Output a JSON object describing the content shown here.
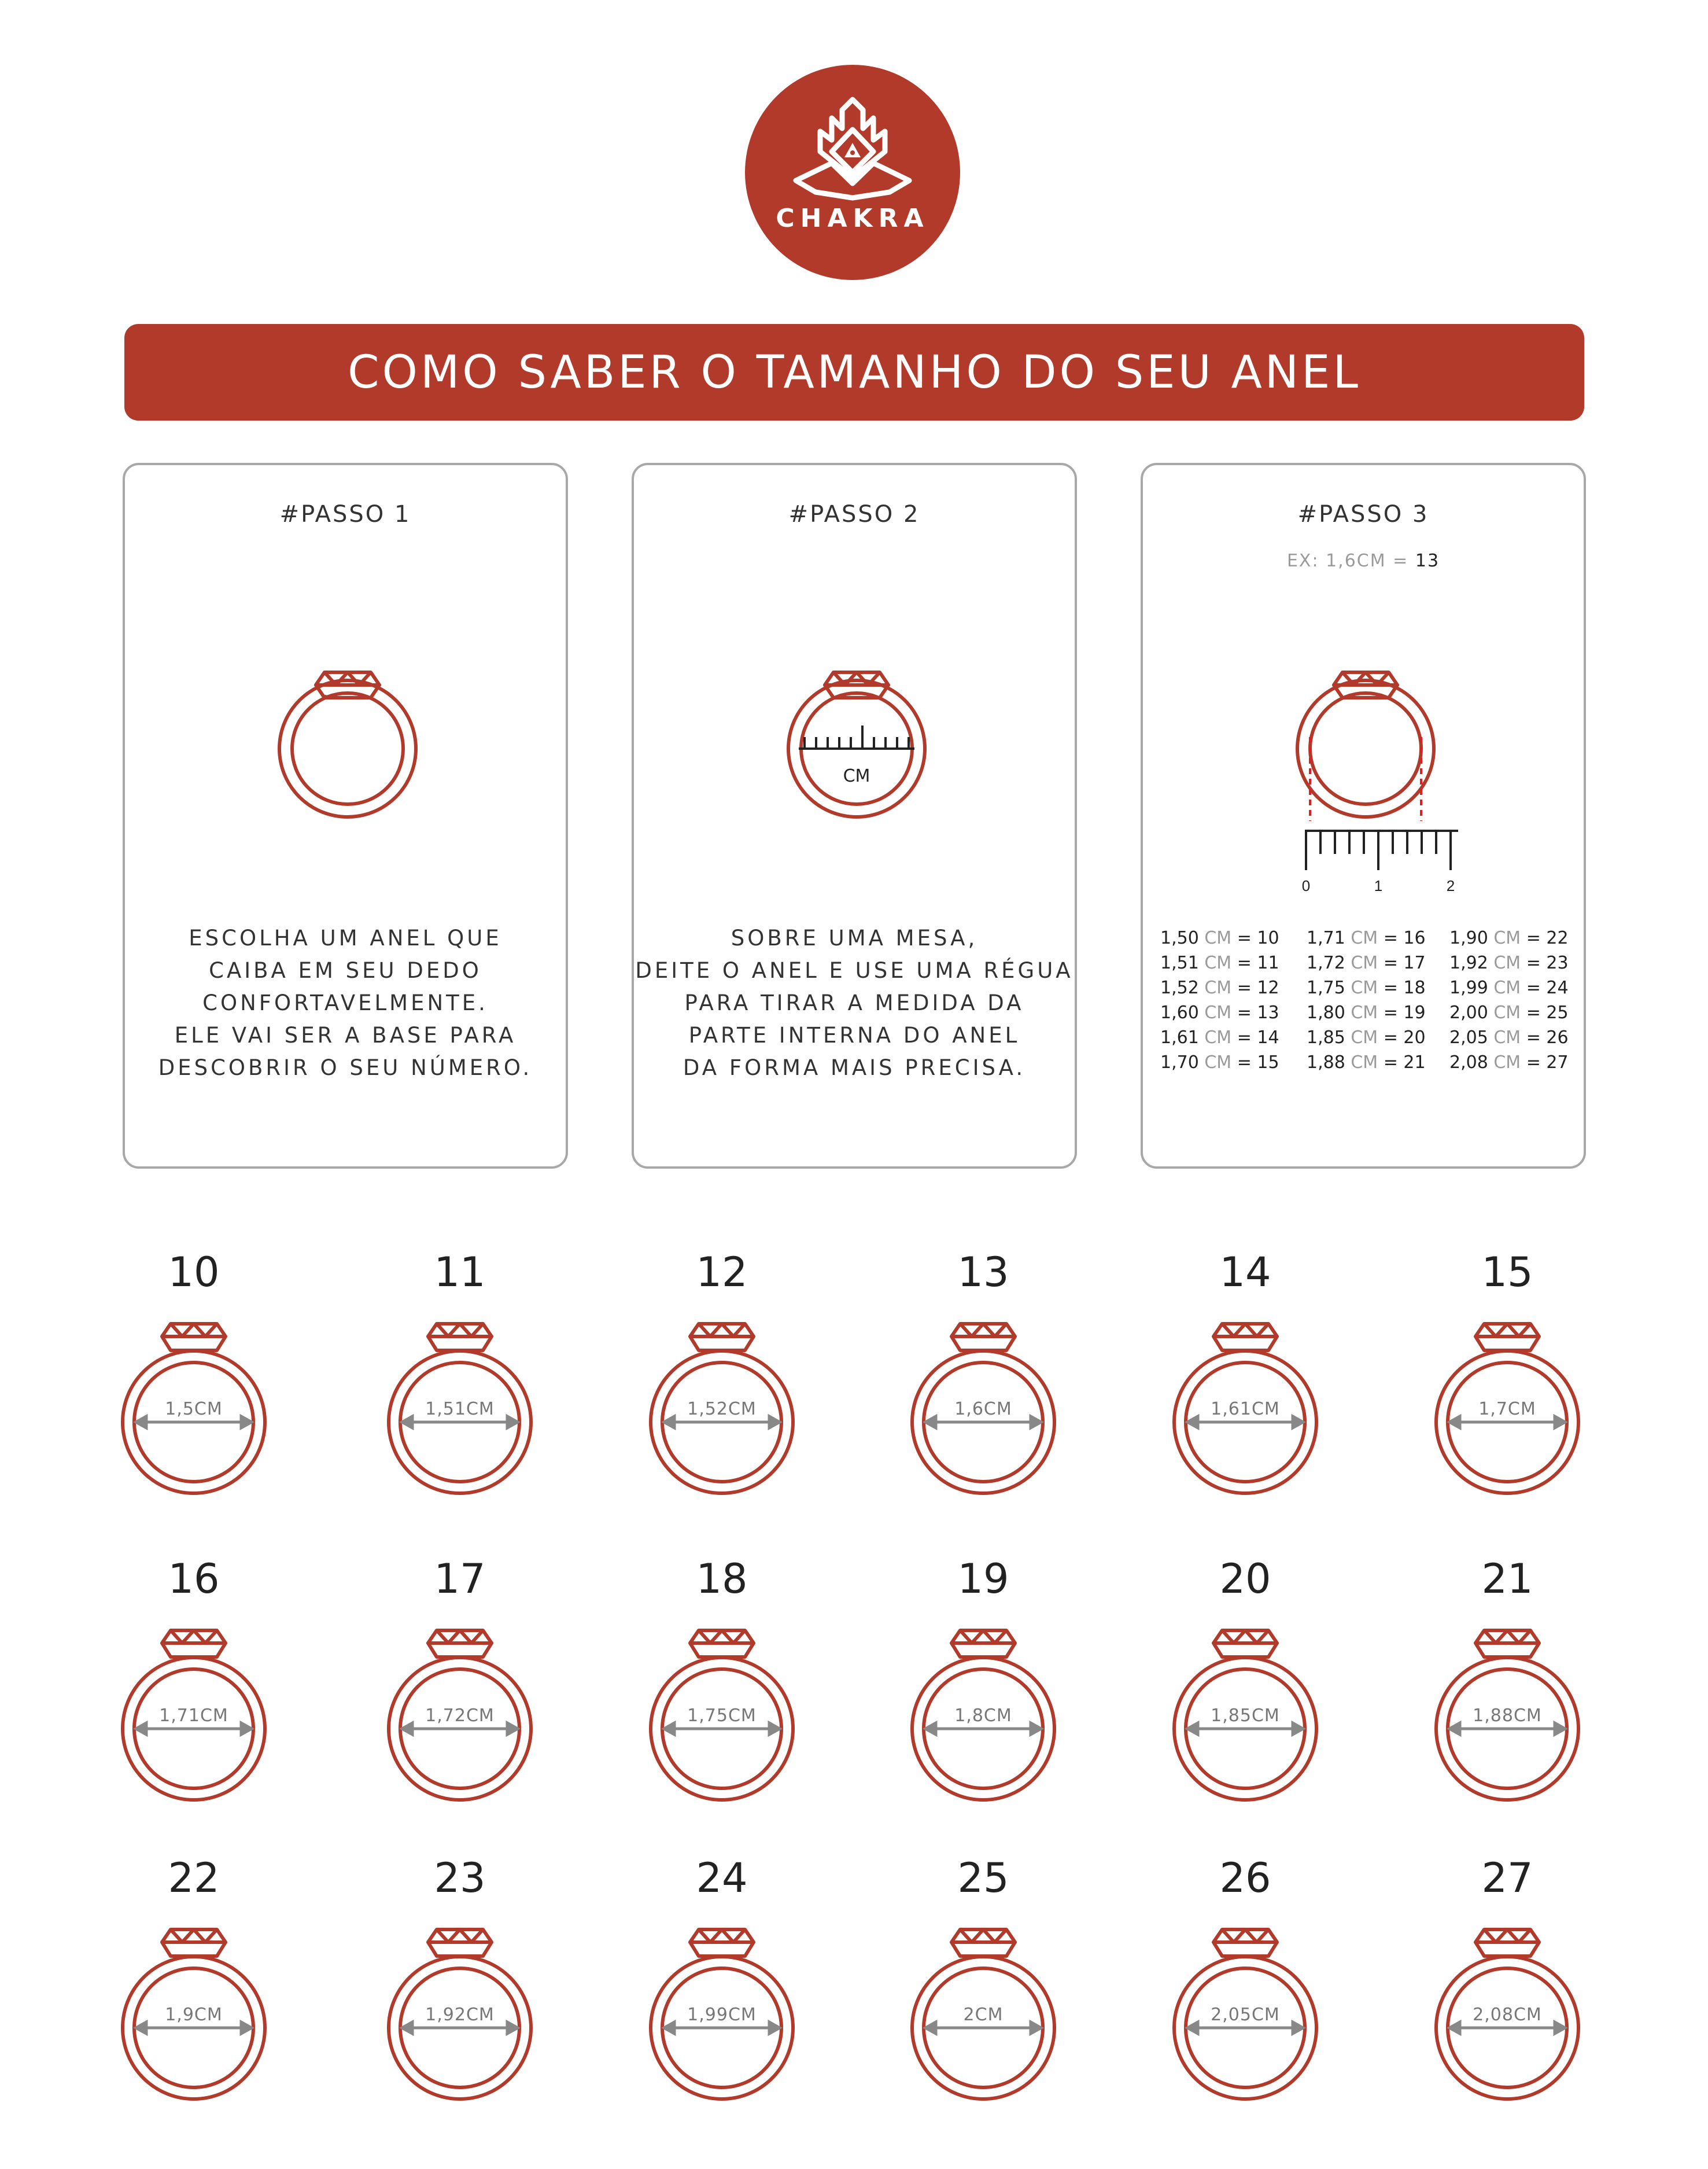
{
  "brand": {
    "name": "CHAKRA",
    "color": "#b13a2a",
    "logo_icon": "chakra-hand-triangle-icon"
  },
  "title": "COMO SABER O TAMANHO DO SEU ANEL",
  "steps": [
    {
      "title": "#PASSO 1",
      "icon": "ring-icon",
      "lines": [
        "ESCOLHA UM ANEL QUE",
        "CAIBA EM SEU DEDO",
        "CONFORTAVELMENTE.",
        "ELE VAI SER A BASE PARA",
        "DESCOBRIR O SEU NÚMERO."
      ]
    },
    {
      "title": "#PASSO 2",
      "icon": "ring-with-ruler-icon",
      "ruler_unit": "CM",
      "lines": [
        "SOBRE UMA MESA,",
        "DEITE O ANEL E USE UMA RÉGUA",
        "PARA TIRAR A MEDIDA DA",
        "PARTE INTERNA DO ANEL",
        "DA FORMA MAIS PRECISA."
      ]
    },
    {
      "title": "#PASSO 3",
      "icon": "ring-measure-icon",
      "example": {
        "prefix": "EX: 1,6CM =",
        "value": "13"
      },
      "ruler_ticks": [
        "0",
        "1",
        "2"
      ],
      "conversion": [
        [
          {
            "cm": "1,50",
            "size": "10"
          },
          {
            "cm": "1,51",
            "size": "11"
          },
          {
            "cm": "1,52",
            "size": "12"
          },
          {
            "cm": "1,60",
            "size": "13"
          },
          {
            "cm": "1,61",
            "size": "14"
          },
          {
            "cm": "1,70",
            "size": "15"
          }
        ],
        [
          {
            "cm": "1,71",
            "size": "16"
          },
          {
            "cm": "1,72",
            "size": "17"
          },
          {
            "cm": "1,75",
            "size": "18"
          },
          {
            "cm": "1,80",
            "size": "19"
          },
          {
            "cm": "1,85",
            "size": "20"
          },
          {
            "cm": "1,88",
            "size": "21"
          }
        ],
        [
          {
            "cm": "1,90",
            "size": "22"
          },
          {
            "cm": "1,92",
            "size": "23"
          },
          {
            "cm": "1,99",
            "size": "24"
          },
          {
            "cm": "2,00",
            "size": "25"
          },
          {
            "cm": "2,05",
            "size": "26"
          },
          {
            "cm": "2,08",
            "size": "27"
          }
        ]
      ],
      "unit_label": "CM",
      "eq": "="
    }
  ],
  "sizes": [
    {
      "number": "10",
      "label": "1,5CM"
    },
    {
      "number": "11",
      "label": "1,51CM"
    },
    {
      "number": "12",
      "label": "1,52CM"
    },
    {
      "number": "13",
      "label": "1,6CM"
    },
    {
      "number": "14",
      "label": "1,61CM"
    },
    {
      "number": "15",
      "label": "1,7CM"
    },
    {
      "number": "16",
      "label": "1,71CM"
    },
    {
      "number": "17",
      "label": "1,72CM"
    },
    {
      "number": "18",
      "label": "1,75CM"
    },
    {
      "number": "19",
      "label": "1,8CM"
    },
    {
      "number": "20",
      "label": "1,85CM"
    },
    {
      "number": "21",
      "label": "1,88CM"
    },
    {
      "number": "22",
      "label": "1,9CM"
    },
    {
      "number": "23",
      "label": "1,92CM"
    },
    {
      "number": "24",
      "label": "1,99CM"
    },
    {
      "number": "25",
      "label": "2CM"
    },
    {
      "number": "26",
      "label": "2,05CM"
    },
    {
      "number": "27",
      "label": "2,08CM"
    }
  ]
}
